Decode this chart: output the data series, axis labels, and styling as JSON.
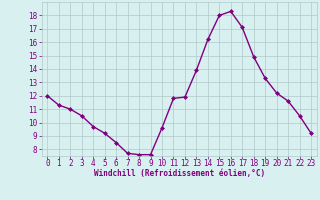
{
  "x": [
    0,
    1,
    2,
    3,
    4,
    5,
    6,
    7,
    8,
    9,
    10,
    11,
    12,
    13,
    14,
    15,
    16,
    17,
    18,
    19,
    20,
    21,
    22,
    23
  ],
  "y": [
    12,
    11.3,
    11,
    10.5,
    9.7,
    9.2,
    8.5,
    7.7,
    7.6,
    7.6,
    9.6,
    11.8,
    11.9,
    13.9,
    16.2,
    18.0,
    18.3,
    17.1,
    14.9,
    13.3,
    12.2,
    11.6,
    10.5,
    9.2
  ],
  "line_color": "#800080",
  "marker": "D",
  "marker_size": 2,
  "bg_color": "#d9f0f0",
  "grid_color": "#b0c8c8",
  "xlabel": "Windchill (Refroidissement éolien,°C)",
  "xlabel_color": "#800080",
  "tick_color": "#800080",
  "xlim": [
    -0.5,
    23.5
  ],
  "ylim": [
    7.5,
    19.0
  ],
  "yticks": [
    8,
    9,
    10,
    11,
    12,
    13,
    14,
    15,
    16,
    17,
    18
  ],
  "xticks": [
    0,
    1,
    2,
    3,
    4,
    5,
    6,
    7,
    8,
    9,
    10,
    11,
    12,
    13,
    14,
    15,
    16,
    17,
    18,
    19,
    20,
    21,
    22,
    23
  ],
  "tick_fontsize": 5.5,
  "xlabel_fontsize": 5.5,
  "linewidth": 1.0
}
